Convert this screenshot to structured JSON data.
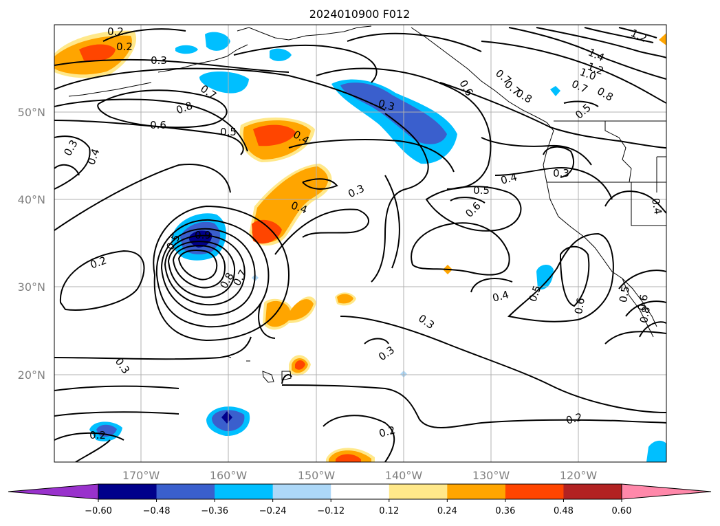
{
  "title": "2024010900 F012",
  "map": {
    "lat_labels": [
      "50°N",
      "40°N",
      "30°N",
      "20°N"
    ],
    "lon_labels": [
      "170°W",
      "160°W",
      "150°W",
      "140°W",
      "130°W",
      "120°W"
    ],
    "contour_labels": [
      "0.2",
      "0.2",
      "0.3",
      "0.7",
      "0.8",
      "0.6",
      "0.5",
      "0.4",
      "0.3",
      "0.4",
      "0.3",
      "0.7",
      "0.6",
      "0.7",
      "0.8",
      "1.4",
      "1.2",
      "1.0",
      "0.7",
      "0.8",
      "1.2",
      "0.5",
      "0.3",
      "0.5",
      "0.4",
      "0.6",
      "0.4",
      "0.3",
      "0.4",
      "0.5",
      "0.9",
      "0.7",
      "0.8",
      "0.2",
      "0.4",
      "0.5",
      "0.6",
      "0.3",
      "0.3",
      "0.3",
      "0.2",
      "0.2",
      "0.2",
      "0.5",
      "0.6",
      "0.8"
    ]
  },
  "colorbar": {
    "ticks": [
      "−0.60",
      "−0.48",
      "−0.36",
      "−0.24",
      "−0.12",
      "0.12",
      "0.24",
      "0.36",
      "0.48",
      "0.60"
    ],
    "colors": [
      "#9932cc",
      "#00008b",
      "#3a5fcd",
      "#00bfff",
      "#add8f8",
      "#ffffff",
      "#ffe88a",
      "#ffa500",
      "#ff4500",
      "#b22222",
      "#ff88aa"
    ]
  }
}
